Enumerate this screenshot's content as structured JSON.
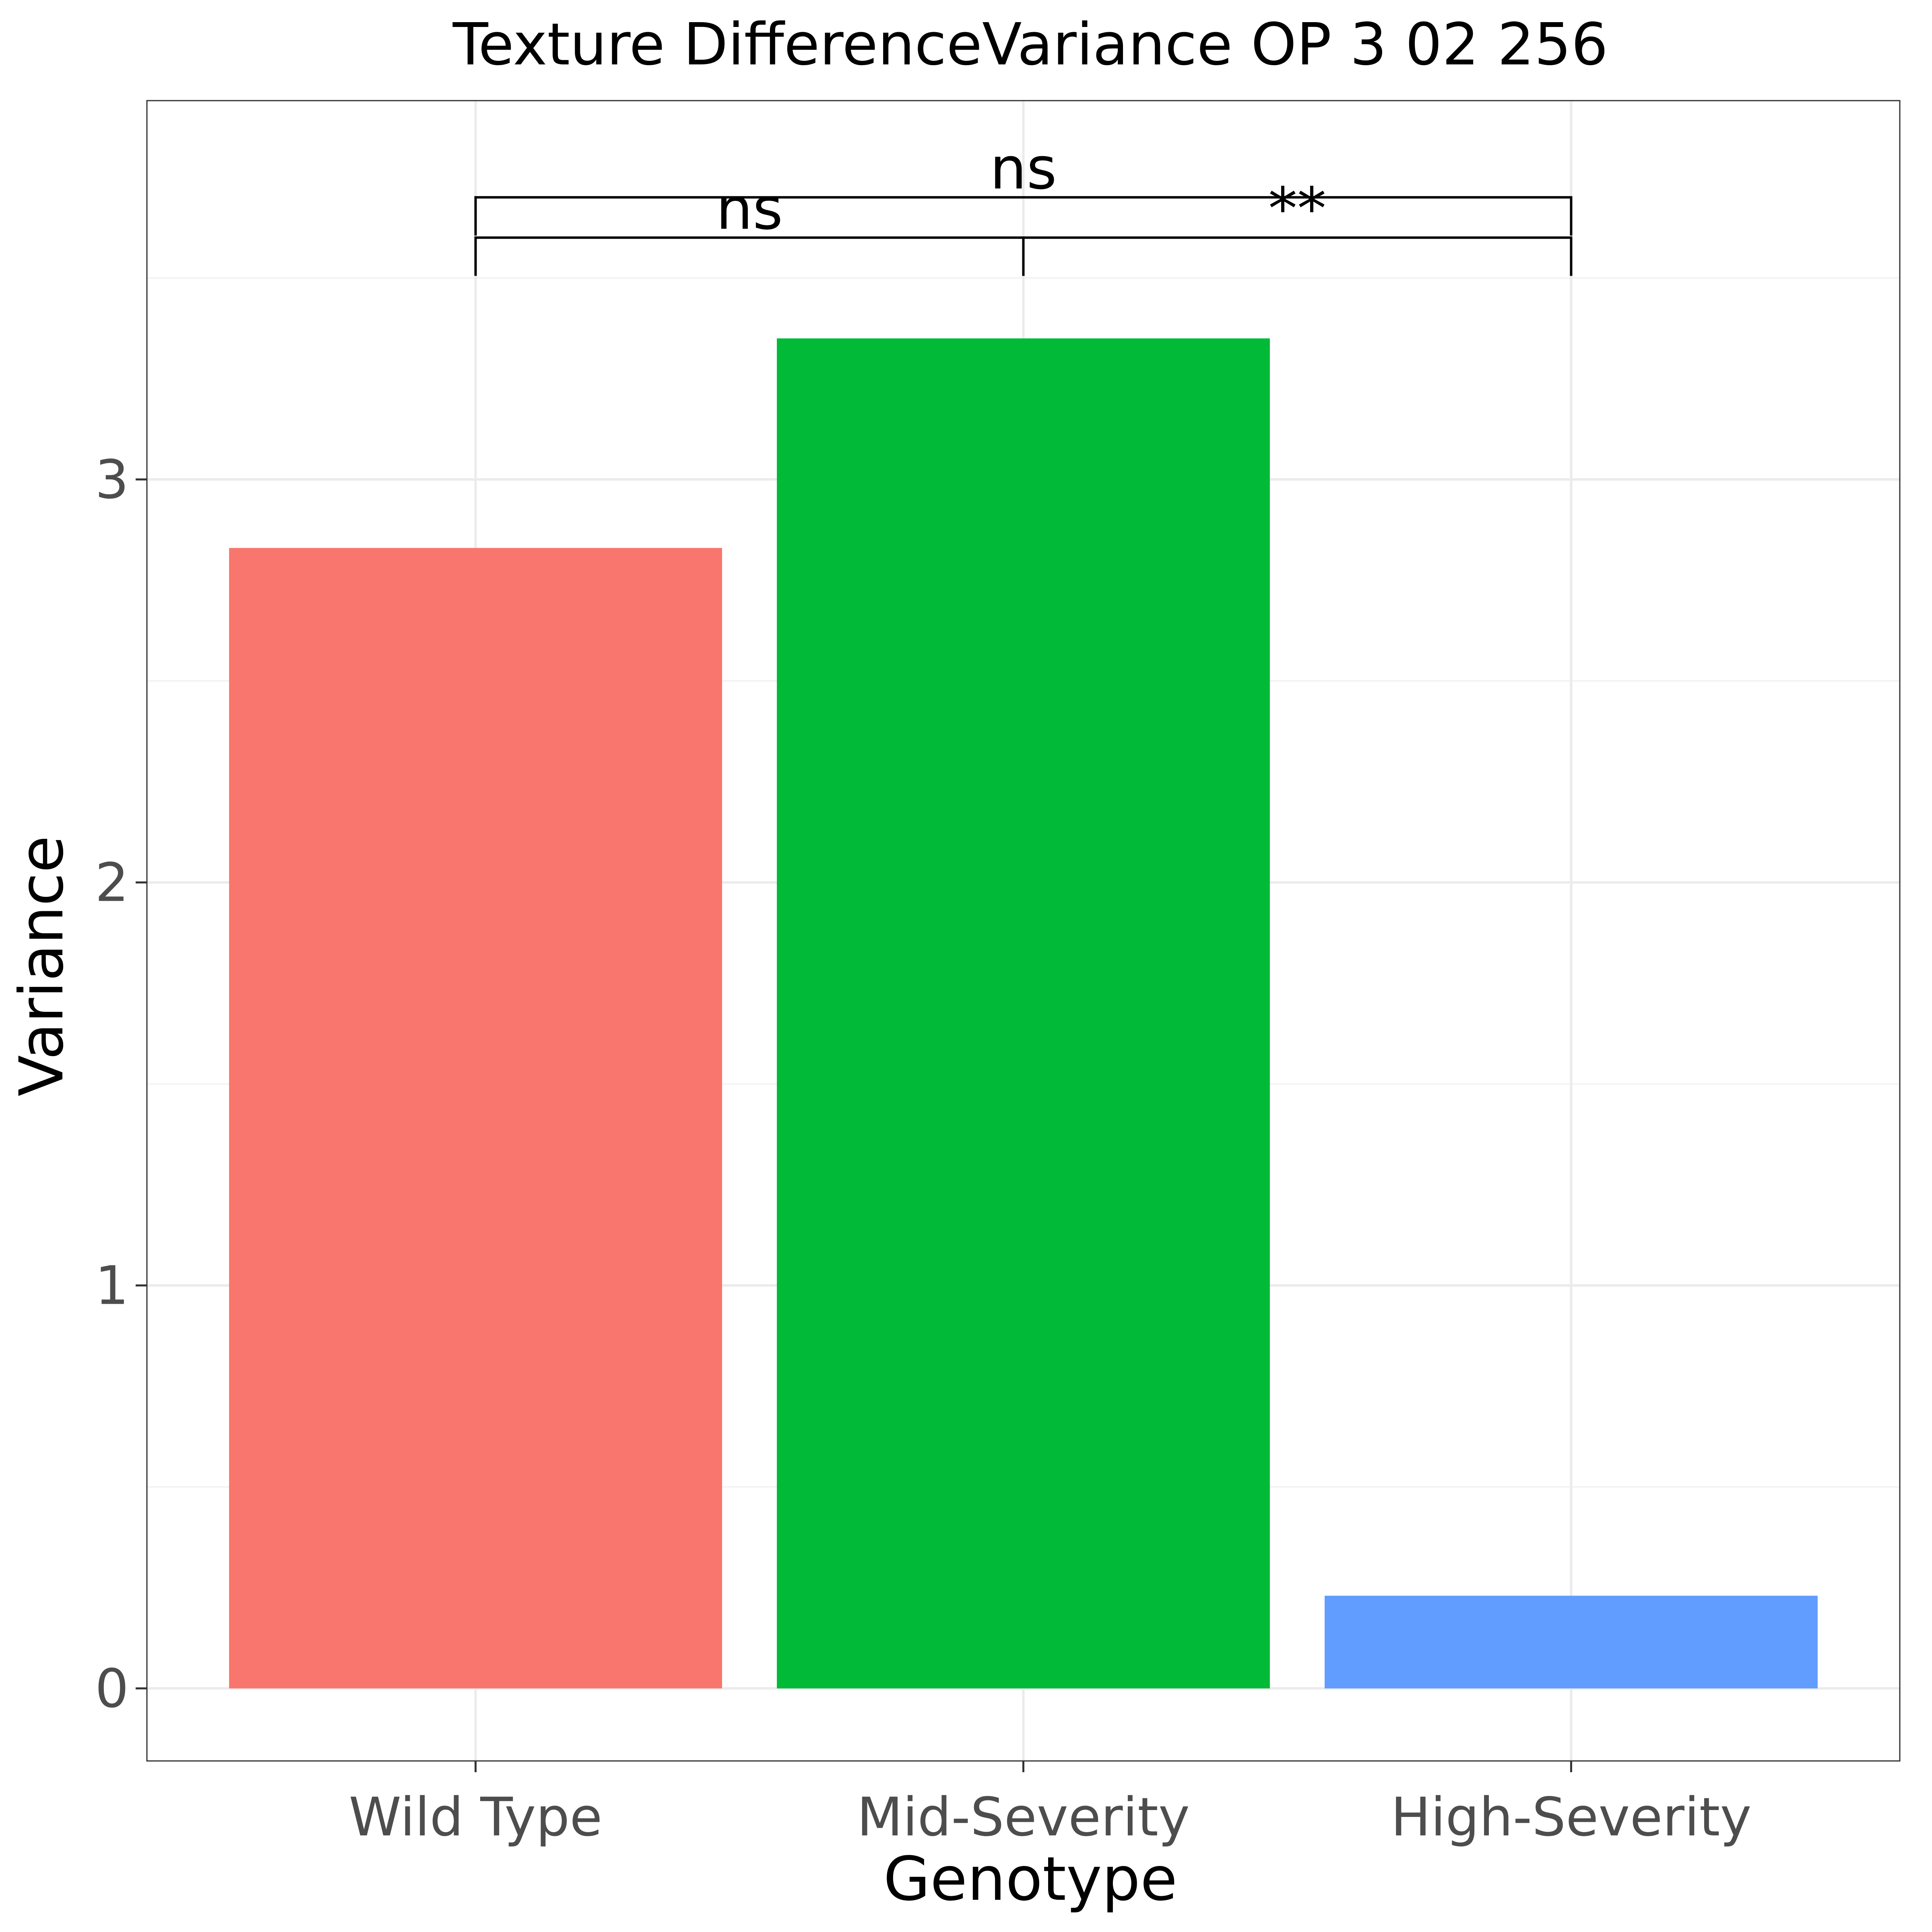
{
  "chart_data": {
    "type": "bar",
    "title": "Texture DifferenceVariance OP 3 02 256",
    "xlabel": "Genotype",
    "ylabel": "Variance",
    "categories": [
      "Wild Type",
      "Mid-Severity",
      "High-Severity"
    ],
    "values": [
      2.83,
      3.35,
      0.23
    ],
    "colors": [
      "#F8766D",
      "#00BA38",
      "#619CFF"
    ],
    "ylim": [
      -0.18,
      3.94
    ],
    "yticks": [
      0,
      1,
      2,
      3
    ],
    "ytick_labels": [
      "0",
      "1",
      "2",
      "3"
    ],
    "grid": true,
    "legend": "none",
    "comparisons": [
      {
        "from": "Wild Type",
        "to": "Mid-Severity",
        "label": "ns",
        "y": 3.6
      },
      {
        "from": "Mid-Severity",
        "to": "High-Severity",
        "label": "**",
        "y": 3.6
      },
      {
        "from": "Wild Type",
        "to": "High-Severity",
        "label": "ns",
        "y": 3.7
      }
    ]
  }
}
